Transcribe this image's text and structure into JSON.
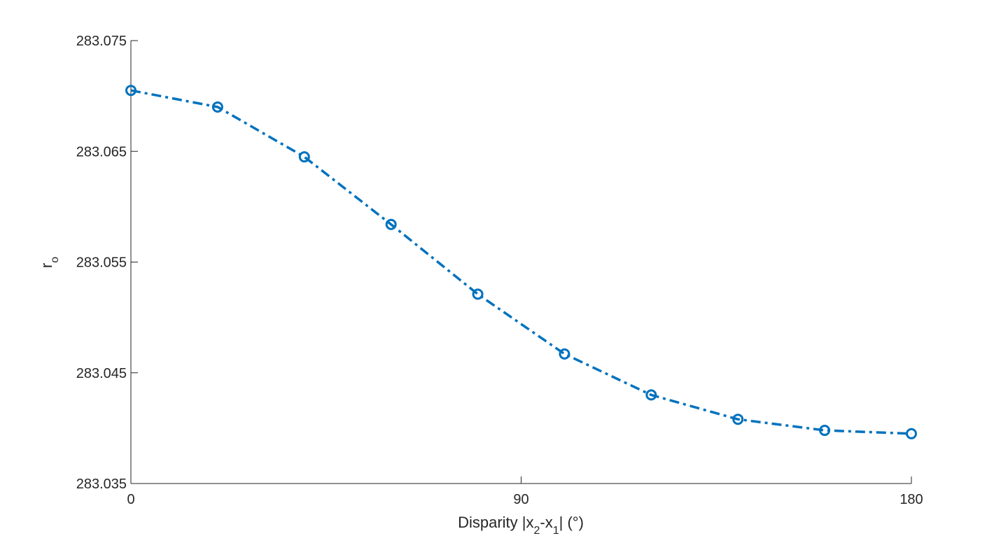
{
  "chart_data": {
    "type": "line",
    "xlabel": {
      "main": "Disparity |x",
      "sub1": "2",
      "mid": "-x",
      "sub2": "1",
      "tail": "| (°)"
    },
    "ylabel": {
      "main": "r",
      "sub": "o"
    },
    "xlim": [
      0,
      180
    ],
    "ylim": [
      283.035,
      283.075
    ],
    "xticks": [
      0,
      90,
      180
    ],
    "xtick_labels": [
      "0",
      "90",
      "180"
    ],
    "yticks": [
      283.035,
      283.045,
      283.055,
      283.065,
      283.075
    ],
    "ytick_labels": [
      "283.035",
      "283.045",
      "283.055",
      "283.065",
      "283.075"
    ],
    "grid": false,
    "series": [
      {
        "color": "#0072BD",
        "line_style": "dash-dot",
        "marker": "circle",
        "x": [
          0,
          20,
          40,
          60,
          80,
          100,
          120,
          140,
          160,
          180
        ],
        "y": [
          283.0705,
          283.069,
          283.0645,
          283.0584,
          283.0521,
          283.0467,
          283.043,
          283.0408,
          283.0398,
          283.0395
        ]
      }
    ]
  }
}
